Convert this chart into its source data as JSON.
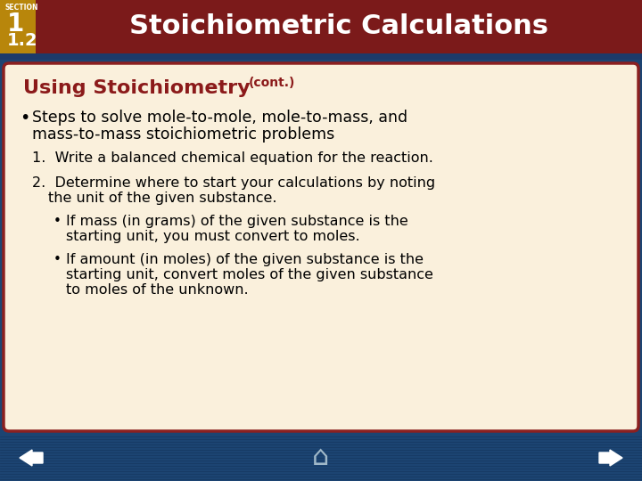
{
  "title": "Stoichiometric Calculations",
  "section_label": "SECTION",
  "section_num": "1",
  "section_sub": "1.2",
  "header_bg": "#7B1A1A",
  "header_text_color": "#FFFFFF",
  "gold_bar_color": "#B8860B",
  "nav_bar_color": "#1C4472",
  "content_bg": "#FAF0DC",
  "content_border_color": "#8B2020",
  "subtitle_color": "#8B1A1A",
  "subtitle": "Using Stoichiometry",
  "subtitle_cont": "(cont.)",
  "overall_bg": "#1C4472"
}
